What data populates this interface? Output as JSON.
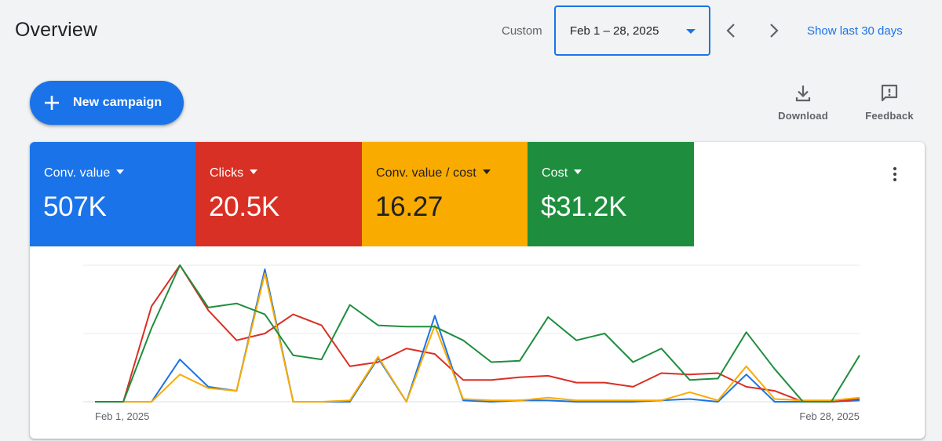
{
  "header": {
    "title": "Overview",
    "date_range_label": "Custom",
    "date_range_value": "Feb 1 – 28, 2025",
    "show_last_label": "Show last 30 days"
  },
  "actions": {
    "new_campaign_label": "New campaign",
    "download_label": "Download",
    "feedback_label": "Feedback"
  },
  "metrics": [
    {
      "label": "Conv. value",
      "value": "507K",
      "color": "#1a73e8",
      "text_color": "#ffffff"
    },
    {
      "label": "Clicks",
      "value": "20.5K",
      "color": "#d93025",
      "text_color": "#ffffff"
    },
    {
      "label": "Conv. value / cost",
      "value": "16.27",
      "color": "#f9ab00",
      "text_color": "#202124"
    },
    {
      "label": "Cost",
      "value": "$31.2K",
      "color": "#1e8e3e",
      "text_color": "#ffffff"
    }
  ],
  "chart_data": {
    "type": "line",
    "x": [
      "Feb 1",
      "Feb 2",
      "Feb 3",
      "Feb 4",
      "Feb 5",
      "Feb 6",
      "Feb 7",
      "Feb 8",
      "Feb 9",
      "Feb 10",
      "Feb 11",
      "Feb 12",
      "Feb 13",
      "Feb 14",
      "Feb 15",
      "Feb 16",
      "Feb 17",
      "Feb 18",
      "Feb 19",
      "Feb 20",
      "Feb 21",
      "Feb 22",
      "Feb 23",
      "Feb 24",
      "Feb 25",
      "Feb 26",
      "Feb 27",
      "Feb 28"
    ],
    "x_tick_labels": {
      "first": "Feb 1, 2025",
      "last": "Feb 28, 2025"
    },
    "ylim": [
      0,
      100
    ],
    "grid": true,
    "series": [
      {
        "color": "#1a73e8",
        "values": [
          0,
          0,
          0,
          31,
          11,
          8,
          97,
          0,
          0,
          0,
          32,
          0,
          63,
          1,
          0,
          1,
          1,
          0,
          0,
          0,
          1,
          2,
          0,
          20,
          0,
          0,
          0,
          1
        ]
      },
      {
        "color": "#d93025",
        "values": [
          0,
          0,
          70,
          100,
          67,
          45,
          50,
          64,
          56,
          26,
          29,
          39,
          35,
          16,
          16,
          18,
          19,
          14,
          14,
          11,
          21,
          20,
          21,
          11,
          8,
          0,
          0,
          2
        ]
      },
      {
        "color": "#f9ab00",
        "values": [
          0,
          0,
          0,
          20,
          10,
          8,
          94,
          0,
          0,
          1,
          33,
          0,
          56,
          2,
          1,
          1,
          3,
          1,
          1,
          1,
          1,
          7,
          1,
          26,
          2,
          1,
          1,
          3
        ]
      },
      {
        "color": "#1e8e3e",
        "values": [
          0,
          0,
          54,
          100,
          69,
          72,
          64,
          34,
          31,
          71,
          56,
          55,
          55,
          45,
          29,
          30,
          62,
          45,
          50,
          29,
          39,
          16,
          17,
          51,
          24,
          0,
          0,
          34
        ]
      }
    ]
  }
}
